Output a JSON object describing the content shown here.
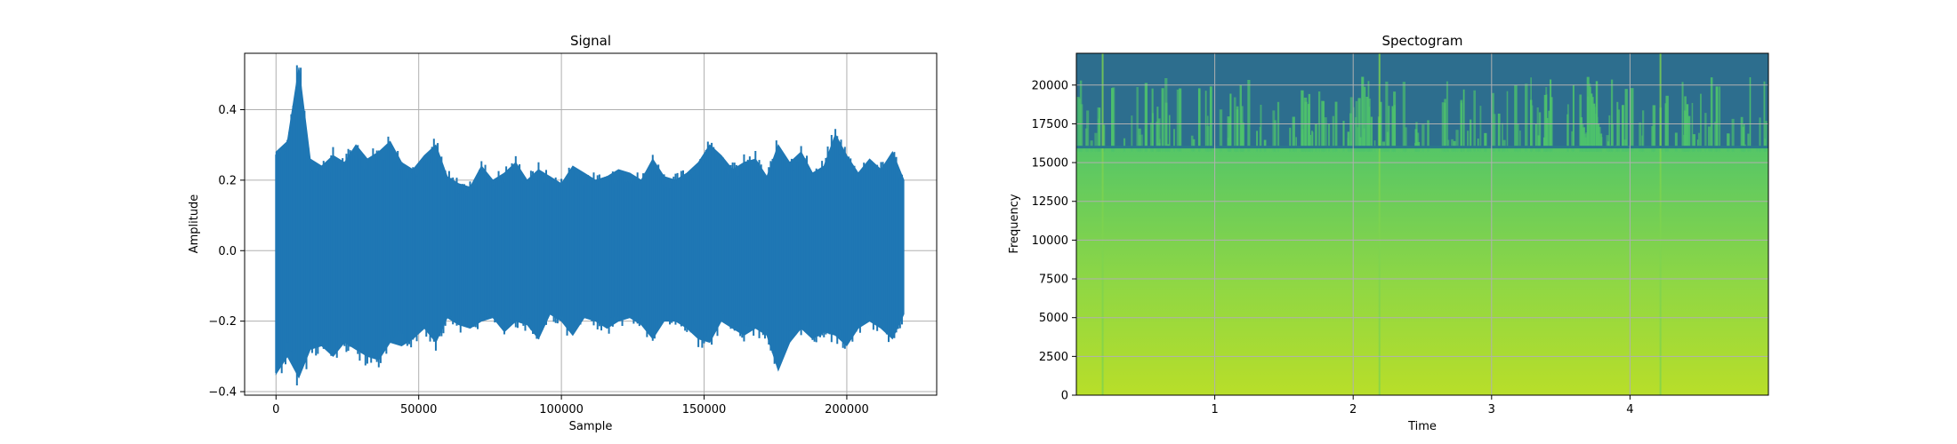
{
  "chart_data": [
    {
      "type": "line",
      "title": "Signal",
      "xlabel": "Sample",
      "ylabel": "Amplitude",
      "xlim": [
        -11000,
        231500
      ],
      "ylim": [
        -0.41,
        0.56
      ],
      "grid": true,
      "color": "#1f77b4",
      "x_ticks": [
        0,
        50000,
        100000,
        150000,
        200000
      ],
      "x_tick_labels": [
        "0",
        "50000",
        "100000",
        "150000",
        "200000"
      ],
      "y_ticks": [
        -0.4,
        -0.2,
        0.0,
        0.2,
        0.4
      ],
      "y_tick_labels": [
        "−0.4",
        "−0.2",
        "0.0",
        "0.2",
        "0.4"
      ],
      "series": [
        {
          "x": [
            0,
            4000,
            8000,
            12000,
            16000,
            20000,
            24000,
            28000,
            32000,
            36000,
            40000,
            44000,
            48000,
            52000,
            56000,
            60000,
            64000,
            68000,
            72000,
            76000,
            80000,
            84000,
            88000,
            92000,
            96000,
            100000,
            104000,
            108000,
            112000,
            116000,
            120000,
            124000,
            128000,
            132000,
            136000,
            140000,
            144000,
            148000,
            152000,
            156000,
            160000,
            164000,
            168000,
            172000,
            176000,
            180000,
            184000,
            188000,
            192000,
            196000,
            200000,
            204000,
            208000,
            212000,
            216000,
            220000
          ],
          "upper": [
            0.28,
            0.31,
            0.52,
            0.26,
            0.24,
            0.27,
            0.25,
            0.3,
            0.26,
            0.28,
            0.31,
            0.25,
            0.23,
            0.27,
            0.3,
            0.21,
            0.19,
            0.18,
            0.24,
            0.2,
            0.22,
            0.25,
            0.2,
            0.23,
            0.21,
            0.19,
            0.24,
            0.22,
            0.2,
            0.21,
            0.23,
            0.22,
            0.2,
            0.26,
            0.21,
            0.2,
            0.22,
            0.25,
            0.3,
            0.27,
            0.23,
            0.25,
            0.26,
            0.21,
            0.3,
            0.25,
            0.28,
            0.22,
            0.24,
            0.33,
            0.27,
            0.22,
            0.26,
            0.23,
            0.28,
            0.2
          ],
          "lower": [
            -0.35,
            -0.3,
            -0.36,
            -0.28,
            -0.27,
            -0.3,
            -0.26,
            -0.28,
            -0.3,
            -0.31,
            -0.26,
            -0.27,
            -0.25,
            -0.22,
            -0.26,
            -0.19,
            -0.21,
            -0.22,
            -0.2,
            -0.19,
            -0.23,
            -0.2,
            -0.21,
            -0.25,
            -0.18,
            -0.2,
            -0.24,
            -0.19,
            -0.2,
            -0.22,
            -0.2,
            -0.19,
            -0.21,
            -0.25,
            -0.2,
            -0.2,
            -0.22,
            -0.25,
            -0.26,
            -0.2,
            -0.22,
            -0.24,
            -0.22,
            -0.24,
            -0.34,
            -0.26,
            -0.22,
            -0.25,
            -0.23,
            -0.24,
            -0.27,
            -0.22,
            -0.2,
            -0.22,
            -0.25,
            -0.18
          ]
        }
      ]
    },
    {
      "type": "heatmap",
      "title": "Spectogram",
      "xlabel": "Time",
      "ylabel": "Frequency",
      "xlim": [
        0,
        5
      ],
      "ylim": [
        0,
        22050
      ],
      "grid": true,
      "colormap": "viridis",
      "x_ticks": [
        1,
        2,
        3,
        4
      ],
      "x_tick_labels": [
        "1",
        "2",
        "3",
        "4"
      ],
      "y_ticks": [
        0,
        2500,
        5000,
        7500,
        10000,
        12500,
        15000,
        17500,
        20000
      ],
      "y_tick_labels": [
        "0",
        "2500",
        "5000",
        "7500",
        "10000",
        "12500",
        "15000",
        "17500",
        "20000"
      ],
      "cutoff_frequency": 16000,
      "band_colors": {
        "low": "#b8de29",
        "mid": "#55c667",
        "high": "#2d6e8e"
      }
    }
  ]
}
